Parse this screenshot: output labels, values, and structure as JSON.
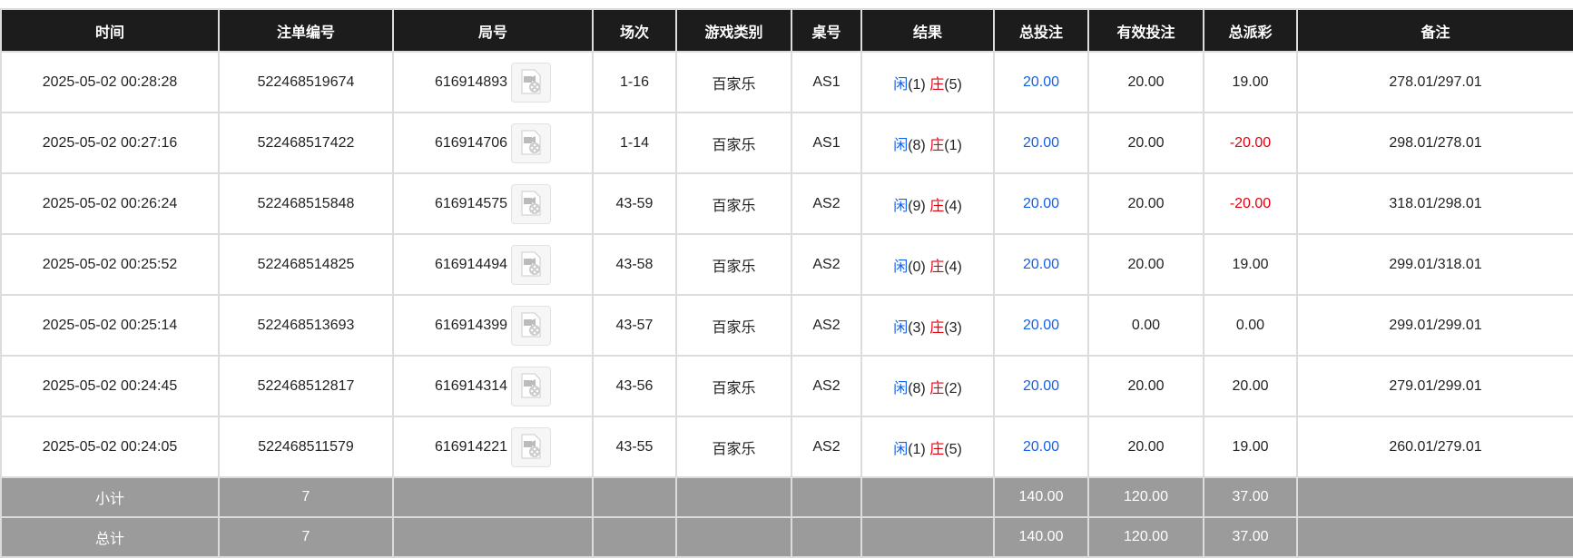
{
  "headers": [
    "时间",
    "注单编号",
    "局号",
    "场次",
    "游戏类别",
    "桌号",
    "结果",
    "总投注",
    "有效投注",
    "总派彩",
    "备注"
  ],
  "player_label": "闲",
  "banker_label": "庄",
  "rows": [
    {
      "time": "2025-05-02 00:28:28",
      "bet_id": "522468519674",
      "round": "616914893",
      "shoe": "1-16",
      "game": "百家乐",
      "table": "AS1",
      "player": "(1)",
      "banker": "(5)",
      "total_bet": "20.00",
      "valid_bet": "20.00",
      "payout": "19.00",
      "payout_negative": false,
      "note": "278.01/297.01"
    },
    {
      "time": "2025-05-02 00:27:16",
      "bet_id": "522468517422",
      "round": "616914706",
      "shoe": "1-14",
      "game": "百家乐",
      "table": "AS1",
      "player": "(8)",
      "banker": "(1)",
      "total_bet": "20.00",
      "valid_bet": "20.00",
      "payout": "-20.00",
      "payout_negative": true,
      "note": "298.01/278.01"
    },
    {
      "time": "2025-05-02 00:26:24",
      "bet_id": "522468515848",
      "round": "616914575",
      "shoe": "43-59",
      "game": "百家乐",
      "table": "AS2",
      "player": "(9)",
      "banker": "(4)",
      "total_bet": "20.00",
      "valid_bet": "20.00",
      "payout": "-20.00",
      "payout_negative": true,
      "note": "318.01/298.01"
    },
    {
      "time": "2025-05-02 00:25:52",
      "bet_id": "522468514825",
      "round": "616914494",
      "shoe": "43-58",
      "game": "百家乐",
      "table": "AS2",
      "player": "(0)",
      "banker": "(4)",
      "total_bet": "20.00",
      "valid_bet": "20.00",
      "payout": "19.00",
      "payout_negative": false,
      "note": "299.01/318.01"
    },
    {
      "time": "2025-05-02 00:25:14",
      "bet_id": "522468513693",
      "round": "616914399",
      "shoe": "43-57",
      "game": "百家乐",
      "table": "AS2",
      "player": "(3)",
      "banker": "(3)",
      "total_bet": "20.00",
      "valid_bet": "0.00",
      "payout": "0.00",
      "payout_negative": false,
      "note": "299.01/299.01"
    },
    {
      "time": "2025-05-02 00:24:45",
      "bet_id": "522468512817",
      "round": "616914314",
      "shoe": "43-56",
      "game": "百家乐",
      "table": "AS2",
      "player": "(8)",
      "banker": "(2)",
      "total_bet": "20.00",
      "valid_bet": "20.00",
      "payout": "20.00",
      "payout_negative": false,
      "note": "279.01/299.01"
    },
    {
      "time": "2025-05-02 00:24:05",
      "bet_id": "522468511579",
      "round": "616914221",
      "shoe": "43-55",
      "game": "百家乐",
      "table": "AS2",
      "player": "(1)",
      "banker": "(5)",
      "total_bet": "20.00",
      "valid_bet": "20.00",
      "payout": "19.00",
      "payout_negative": false,
      "note": "260.01/279.01"
    }
  ],
  "subtotal": {
    "label": "小计",
    "count": "7",
    "total_bet": "140.00",
    "valid_bet": "120.00",
    "payout": "37.00"
  },
  "total": {
    "label": "总计",
    "count": "7",
    "total_bet": "140.00",
    "valid_bet": "120.00",
    "payout": "37.00"
  },
  "colors": {
    "header_bg": "#1c1c1c",
    "summary_bg": "#9b9b9b",
    "player": "#1560e8",
    "banker": "#e5000f"
  }
}
